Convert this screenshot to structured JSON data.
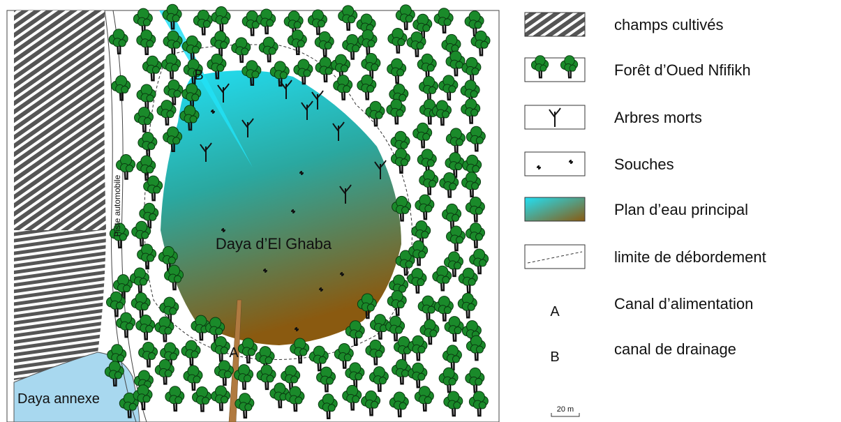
{
  "map": {
    "labels": {
      "lake": "Daya d’El Ghaba",
      "annex": "Daya annexe",
      "road": "Piste automobile",
      "a": "A",
      "b": "B"
    },
    "legend": [
      {
        "label": "champs cultivés"
      },
      {
        "label": "Forêt d’Oued Nfifikh"
      },
      {
        "label": "Arbres morts"
      },
      {
        "label": "Souches"
      },
      {
        "label": "Plan d’eau principal"
      },
      {
        "label": "limite de débordement"
      },
      {
        "symbol": "A",
        "label": "Canal d’alimentation"
      },
      {
        "symbol": "B",
        "label": "canal de drainage"
      }
    ],
    "scale": "20 m"
  }
}
